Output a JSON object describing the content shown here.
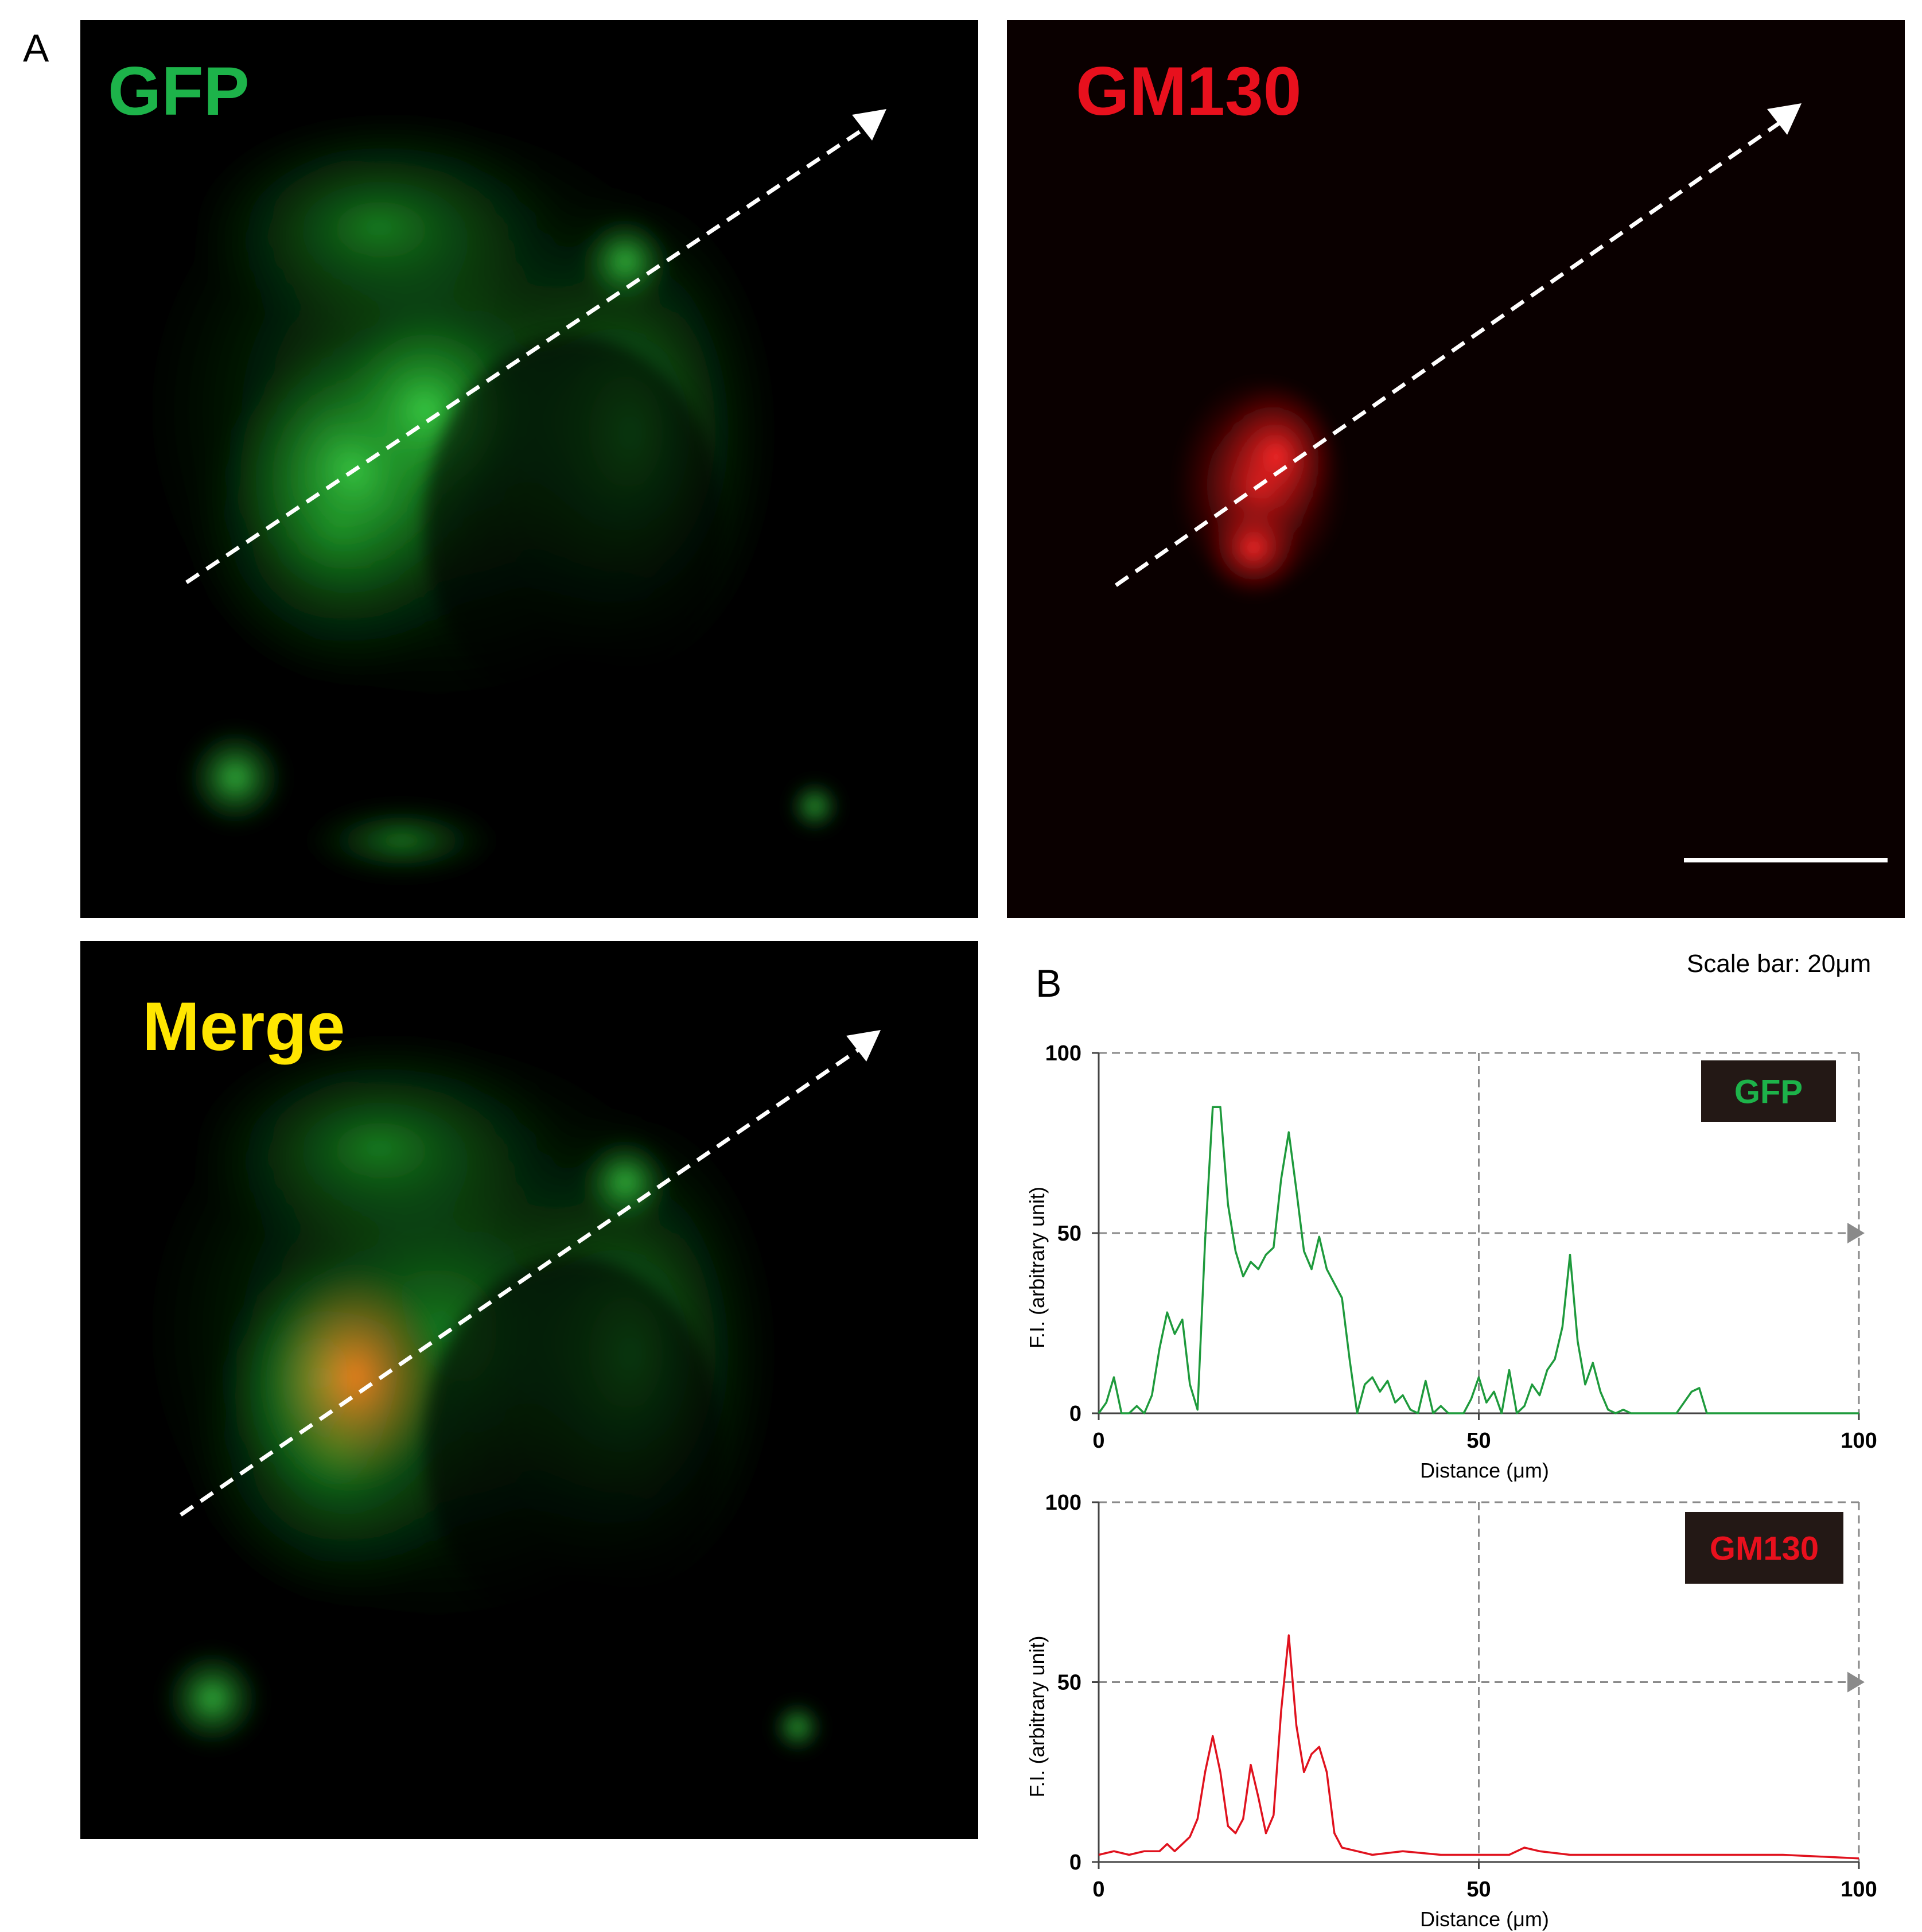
{
  "figure": {
    "panel_a": "A",
    "panel_b": "B",
    "scale_bar_text": "Scale bar: 20μm",
    "images": {
      "gfp": "GFP",
      "gm130": "GM130",
      "merge": "Merge"
    },
    "colors": {
      "gfp": "#1db34a",
      "gm130": "#e8101d",
      "merge": "#ffe600",
      "line_green": "#1e9a3c",
      "line_red": "#e0121e"
    }
  },
  "chart_data": [
    {
      "type": "line",
      "legend": "GFP",
      "xlabel": "Distance (μm)",
      "ylabel": "F.I. (arbitrary unit)",
      "xlim": [
        0,
        100
      ],
      "ylim": [
        0,
        100
      ],
      "xticks": [
        "0",
        "50",
        "100"
      ],
      "yticks": [
        "0",
        "50",
        "100"
      ],
      "grid": "dashed at x=50, y=50 and y=100",
      "series": [
        {
          "color": "#1e9a3c",
          "x": [
            0,
            1,
            2,
            3,
            4,
            5,
            6,
            7,
            8,
            9,
            10,
            11,
            12,
            13,
            14,
            15,
            16,
            17,
            18,
            19,
            20,
            21,
            22,
            23,
            24,
            25,
            26,
            27,
            28,
            29,
            30,
            31,
            32,
            33,
            34,
            35,
            36,
            37,
            38,
            39,
            40,
            41,
            42,
            43,
            44,
            45,
            46,
            47,
            48,
            49,
            50,
            51,
            52,
            53,
            54,
            55,
            56,
            57,
            58,
            59,
            60,
            61,
            62,
            63,
            64,
            65,
            66,
            67,
            68,
            69,
            70,
            72,
            74,
            76,
            78,
            79,
            80,
            82,
            85,
            90,
            95,
            100
          ],
          "values": [
            0,
            3,
            10,
            0,
            0,
            2,
            0,
            5,
            18,
            28,
            22,
            26,
            8,
            1,
            48,
            85,
            85,
            58,
            45,
            38,
            42,
            40,
            44,
            46,
            65,
            78,
            62,
            45,
            40,
            49,
            40,
            36,
            32,
            15,
            0,
            8,
            10,
            6,
            9,
            3,
            5,
            1,
            0,
            9,
            0,
            2,
            0,
            0,
            0,
            4,
            10,
            3,
            6,
            0,
            12,
            0,
            2,
            8,
            5,
            12,
            15,
            24,
            44,
            20,
            8,
            14,
            6,
            1,
            0,
            1,
            0,
            0,
            0,
            0,
            6,
            7,
            0,
            0,
            0,
            0,
            0,
            0
          ]
        }
      ]
    },
    {
      "type": "line",
      "legend": "GM130",
      "xlabel": "Distance (μm)",
      "ylabel": "F.I. (arbitrary unit)",
      "xlim": [
        0,
        100
      ],
      "ylim": [
        0,
        100
      ],
      "xticks": [
        "0",
        "50",
        "100"
      ],
      "yticks": [
        "0",
        "50",
        "100"
      ],
      "grid": "dashed at x=50, y=50 and y=100",
      "series": [
        {
          "color": "#e0121e",
          "x": [
            0,
            2,
            4,
            6,
            8,
            9,
            10,
            11,
            12,
            13,
            14,
            15,
            16,
            17,
            18,
            19,
            20,
            21,
            22,
            23,
            24,
            25,
            26,
            27,
            28,
            29,
            30,
            31,
            32,
            34,
            36,
            40,
            45,
            50,
            54,
            56,
            58,
            62,
            70,
            80,
            90,
            100
          ],
          "values": [
            2,
            3,
            2,
            3,
            3,
            5,
            3,
            5,
            7,
            12,
            25,
            35,
            25,
            10,
            8,
            12,
            27,
            18,
            8,
            13,
            42,
            63,
            38,
            25,
            30,
            32,
            25,
            8,
            4,
            3,
            2,
            3,
            2,
            2,
            2,
            4,
            3,
            2,
            2,
            2,
            2,
            1
          ]
        }
      ]
    }
  ]
}
